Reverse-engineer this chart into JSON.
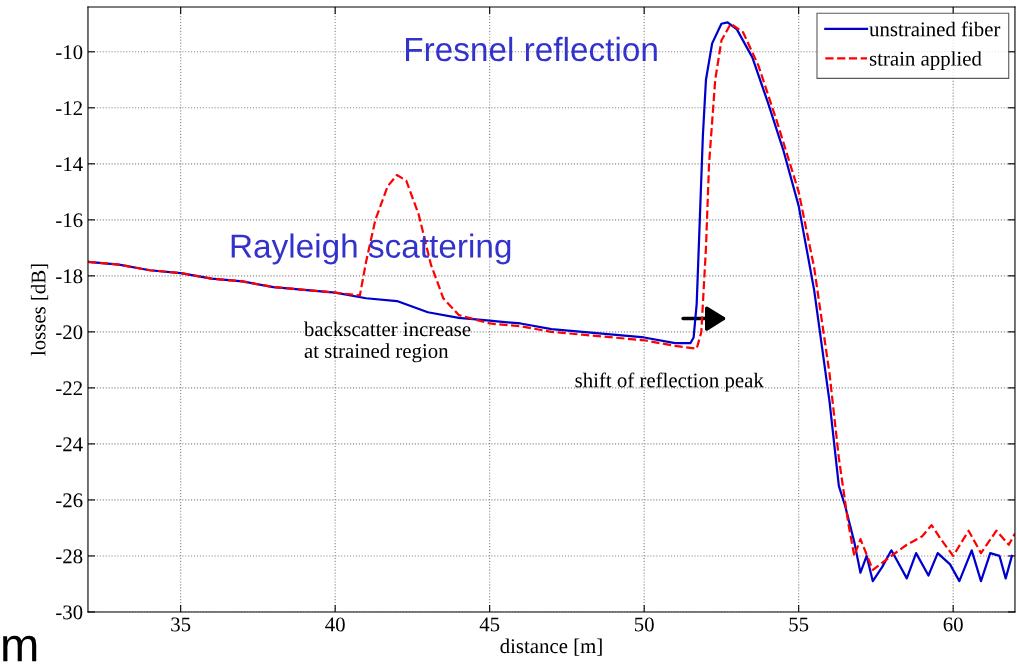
{
  "chart_data": {
    "type": "line",
    "xlabel": "distance [m]",
    "ylabel": "losses [dB]",
    "xlim": [
      32,
      62
    ],
    "ylim": [
      -30,
      -8.4
    ],
    "xticks": [
      35,
      40,
      45,
      50,
      55,
      60
    ],
    "yticks": [
      -30,
      -28,
      -26,
      -24,
      -22,
      -20,
      -18,
      -16,
      -14,
      -12,
      -10
    ],
    "grid": true,
    "legend": "top right",
    "series": [
      {
        "name": "unstrained fiber",
        "color": "#0000cc",
        "line_style": "solid",
        "x": [
          32,
          33,
          34,
          35,
          36,
          37,
          38,
          39,
          40,
          41,
          42,
          43,
          44,
          45,
          46,
          47,
          48,
          49,
          50,
          51,
          51.5,
          51.6,
          51.7,
          51.8,
          51.9,
          52.0,
          52.2,
          52.5,
          52.7,
          53.0,
          53.5,
          54,
          54.5,
          55,
          55.5,
          56,
          56.3,
          56.5,
          56.8,
          57.0,
          57.2,
          57.4,
          57.7,
          58.0,
          58.5,
          58.8,
          59.2,
          59.5,
          59.9,
          60.2,
          60.6,
          60.9,
          61.2,
          61.5,
          61.7,
          61.9
        ],
        "values": [
          -17.5,
          -17.6,
          -17.8,
          -17.9,
          -18.1,
          -18.2,
          -18.4,
          -18.5,
          -18.6,
          -18.8,
          -18.9,
          -19.3,
          -19.5,
          -19.6,
          -19.7,
          -19.9,
          -20.0,
          -20.1,
          -20.2,
          -20.4,
          -20.4,
          -20.2,
          -19,
          -16,
          -13,
          -11,
          -9.7,
          -9.0,
          -8.95,
          -9.2,
          -10.2,
          -11.8,
          -13.5,
          -15.5,
          -18.5,
          -22.5,
          -25.5,
          -26.2,
          -27.5,
          -28.6,
          -28.0,
          -28.9,
          -28.4,
          -27.8,
          -28.8,
          -27.9,
          -28.7,
          -27.9,
          -28.3,
          -28.9,
          -27.8,
          -28.9,
          -27.9,
          -28.0,
          -28.8,
          -28.0
        ]
      },
      {
        "name": "strain applied",
        "color": "#ff0000",
        "line_style": "dashed",
        "x": [
          32,
          33,
          34,
          35,
          36,
          37,
          38,
          39,
          40,
          40.8,
          41.0,
          41.3,
          41.7,
          42.0,
          42.3,
          42.7,
          43.1,
          43.5,
          44,
          45,
          46,
          47,
          48,
          49,
          50,
          51,
          51.7,
          51.85,
          52.0,
          52.1,
          52.3,
          52.5,
          52.8,
          53.2,
          53.7,
          54.3,
          55,
          55.5,
          56.0,
          56.3,
          56.6,
          56.8,
          57.0,
          57.4,
          58,
          58.5,
          59,
          59.3,
          59.6,
          60.0,
          60.5,
          60.9,
          61.4,
          61.8,
          62
        ],
        "values": [
          -17.5,
          -17.6,
          -17.8,
          -17.9,
          -18.1,
          -18.2,
          -18.4,
          -18.5,
          -18.6,
          -18.7,
          -17.5,
          -16,
          -14.8,
          -14.4,
          -14.6,
          -15.8,
          -17.6,
          -18.8,
          -19.4,
          -19.7,
          -19.8,
          -20.0,
          -20.1,
          -20.2,
          -20.3,
          -20.5,
          -20.6,
          -20.0,
          -17,
          -14,
          -11,
          -9.6,
          -9.0,
          -9.3,
          -10.5,
          -12.5,
          -15.0,
          -17.7,
          -21.5,
          -24.5,
          -26.8,
          -28.0,
          -27.4,
          -28.5,
          -28.0,
          -27.6,
          -27.3,
          -26.9,
          -27.4,
          -28.0,
          -27.1,
          -27.9,
          -27.1,
          -27.6,
          -27.2
        ]
      }
    ],
    "annotations": [
      "Fresnel reflection",
      "Rayleigh scattering",
      "backscatter increase\nat strained region",
      "shift of reflection peak",
      "m"
    ]
  }
}
